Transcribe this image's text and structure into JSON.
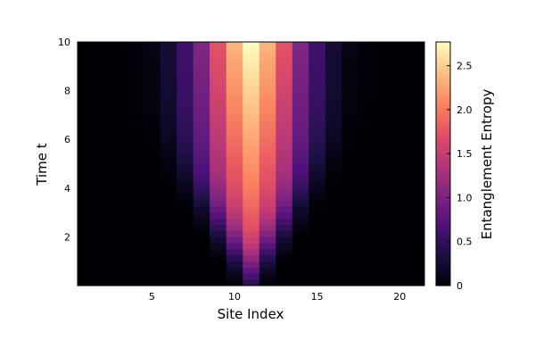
{
  "chart_data": {
    "type": "heatmap",
    "xlabel": "Site Index",
    "ylabel": "Time t",
    "colorbar_label": "Entanglement Entropy",
    "xlim": [
      0.5,
      21.5
    ],
    "ylim": [
      0,
      10
    ],
    "x_ticks": [
      "5",
      "10",
      "15",
      "20"
    ],
    "y_ticks": [
      "2",
      "4",
      "6",
      "8",
      "10"
    ],
    "colorbar_ticks": [
      "0",
      "0.5",
      "1.0",
      "1.5",
      "2.0",
      "2.5"
    ],
    "colorbar_range": [
      0,
      2.77
    ],
    "colormap": "magma",
    "x": [
      1,
      2,
      3,
      4,
      5,
      6,
      7,
      8,
      9,
      10,
      11,
      12,
      13,
      14,
      15,
      16,
      17,
      18,
      19,
      20,
      21
    ],
    "y_range": [
      0,
      10
    ],
    "y_rows": 40,
    "peak_site": 11,
    "final_entropy_profile": [
      0.0,
      0.0,
      0.01,
      0.03,
      0.08,
      0.28,
      0.6,
      1.05,
      1.75,
      2.35,
      2.77,
      2.35,
      1.75,
      1.05,
      0.6,
      0.28,
      0.08,
      0.03,
      0.01,
      0.0,
      0.0
    ],
    "grid": false
  }
}
